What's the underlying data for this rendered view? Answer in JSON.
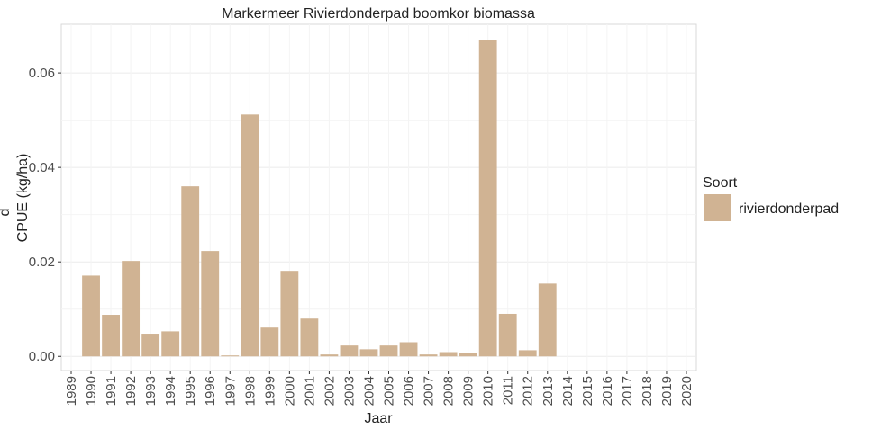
{
  "chart_data": {
    "type": "bar",
    "title": "Markermeer Rivierdonderpad boomkor biomassa",
    "x_label": "Jaar",
    "y_label": [
      "d",
      "CPUE (kg/ha)"
    ],
    "categories": [
      "1989",
      "1990",
      "1991",
      "1992",
      "1993",
      "1994",
      "1995",
      "1996",
      "1997",
      "1998",
      "1999",
      "2000",
      "2001",
      "2002",
      "2003",
      "2004",
      "2005",
      "2006",
      "2007",
      "2008",
      "2009",
      "2010",
      "2011",
      "2012",
      "2013",
      "2014",
      "2015",
      "2016",
      "2017",
      "2018",
      "2019",
      "2020"
    ],
    "series": [
      {
        "name": "rivierdonderpad",
        "color": "#d0b393",
        "values": [
          0,
          0.0171,
          0.0088,
          0.0202,
          0.0048,
          0.0053,
          0.036,
          0.0223,
          0.0002,
          0.0512,
          0.0061,
          0.0181,
          0.008,
          0.0004,
          0.0023,
          0.0015,
          0.0023,
          0.003,
          0.0004,
          0.0009,
          0.0008,
          0.0669,
          0.009,
          0.0013,
          0.0154,
          null,
          null,
          null,
          null,
          null,
          null,
          null
        ]
      }
    ],
    "legend_title": "Soort",
    "ylim": [
      -0.003,
      0.0703
    ],
    "yticks": [
      {
        "value": 0,
        "label": "0.00"
      },
      {
        "value": 0.02,
        "label": "0.02"
      },
      {
        "value": 0.04,
        "label": "0.04"
      },
      {
        "value": 0.06,
        "label": "0.06"
      }
    ],
    "grid": true,
    "legend_position": "right"
  }
}
